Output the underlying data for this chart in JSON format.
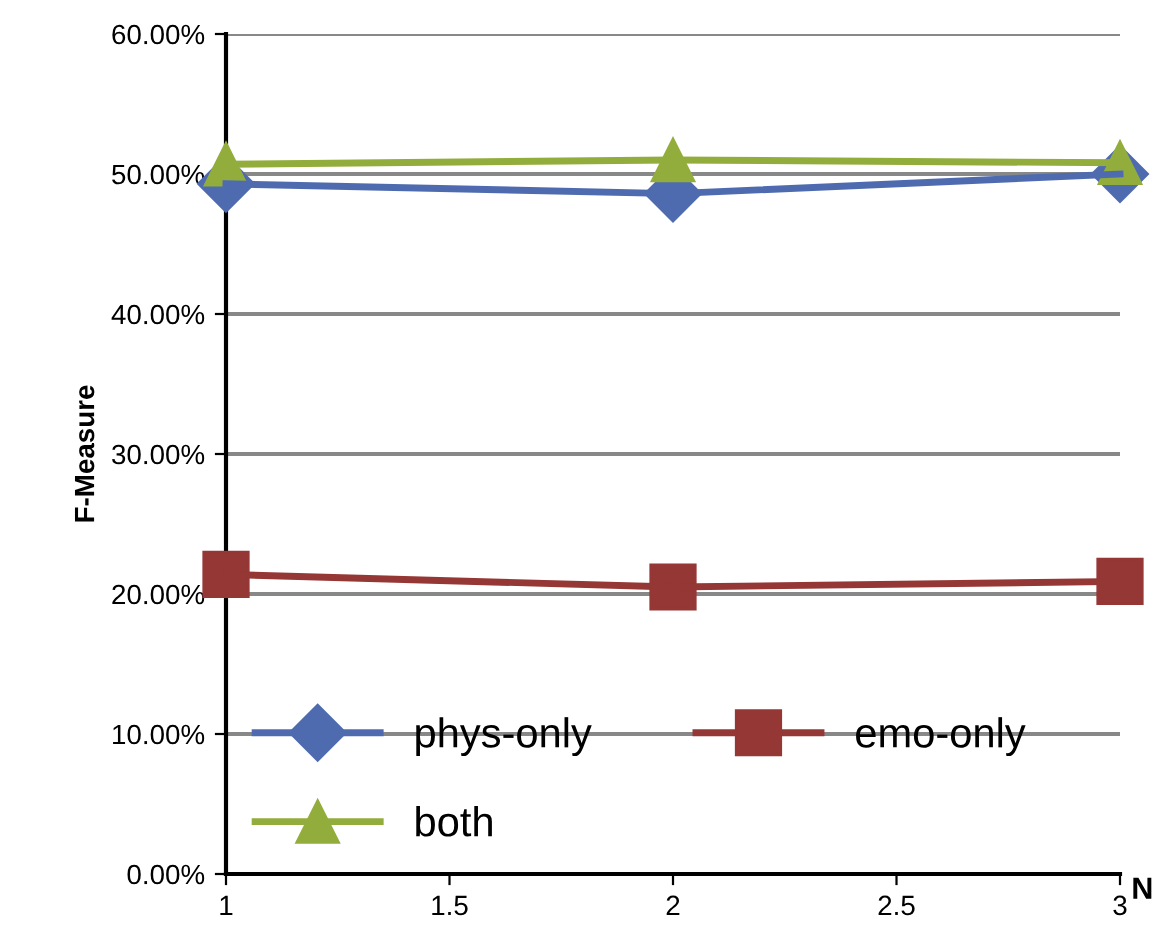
{
  "chart_data": {
    "type": "line",
    "xlabel": "N",
    "ylabel": "F-Measure",
    "x": [
      1,
      2,
      3
    ],
    "series": [
      {
        "name": "phys-only",
        "color": "#4f6bb0",
        "marker": "diamond",
        "values": [
          49.3,
          48.6,
          50.0
        ]
      },
      {
        "name": "emo-only",
        "color": "#953735",
        "marker": "square",
        "values": [
          21.4,
          20.5,
          20.9
        ]
      },
      {
        "name": "both",
        "color": "#92ad3c",
        "marker": "triangle",
        "values": [
          50.7,
          51.0,
          50.8
        ]
      }
    ],
    "xlim": [
      1,
      3
    ],
    "xticks": [
      1,
      1.5,
      2,
      2.5,
      3
    ],
    "ylim": [
      0,
      60
    ],
    "yticks": [
      {
        "value": 0,
        "label": "0.00%"
      },
      {
        "value": 10,
        "label": "10.00%"
      },
      {
        "value": 20,
        "label": "20.00%"
      },
      {
        "value": 30,
        "label": "30.00%"
      },
      {
        "value": 40,
        "label": "40.00%"
      },
      {
        "value": 50,
        "label": "50.00%"
      },
      {
        "value": 60,
        "label": "60.00%"
      }
    ],
    "grid": "y",
    "legend": "bottom left",
    "line_style": "solid"
  }
}
